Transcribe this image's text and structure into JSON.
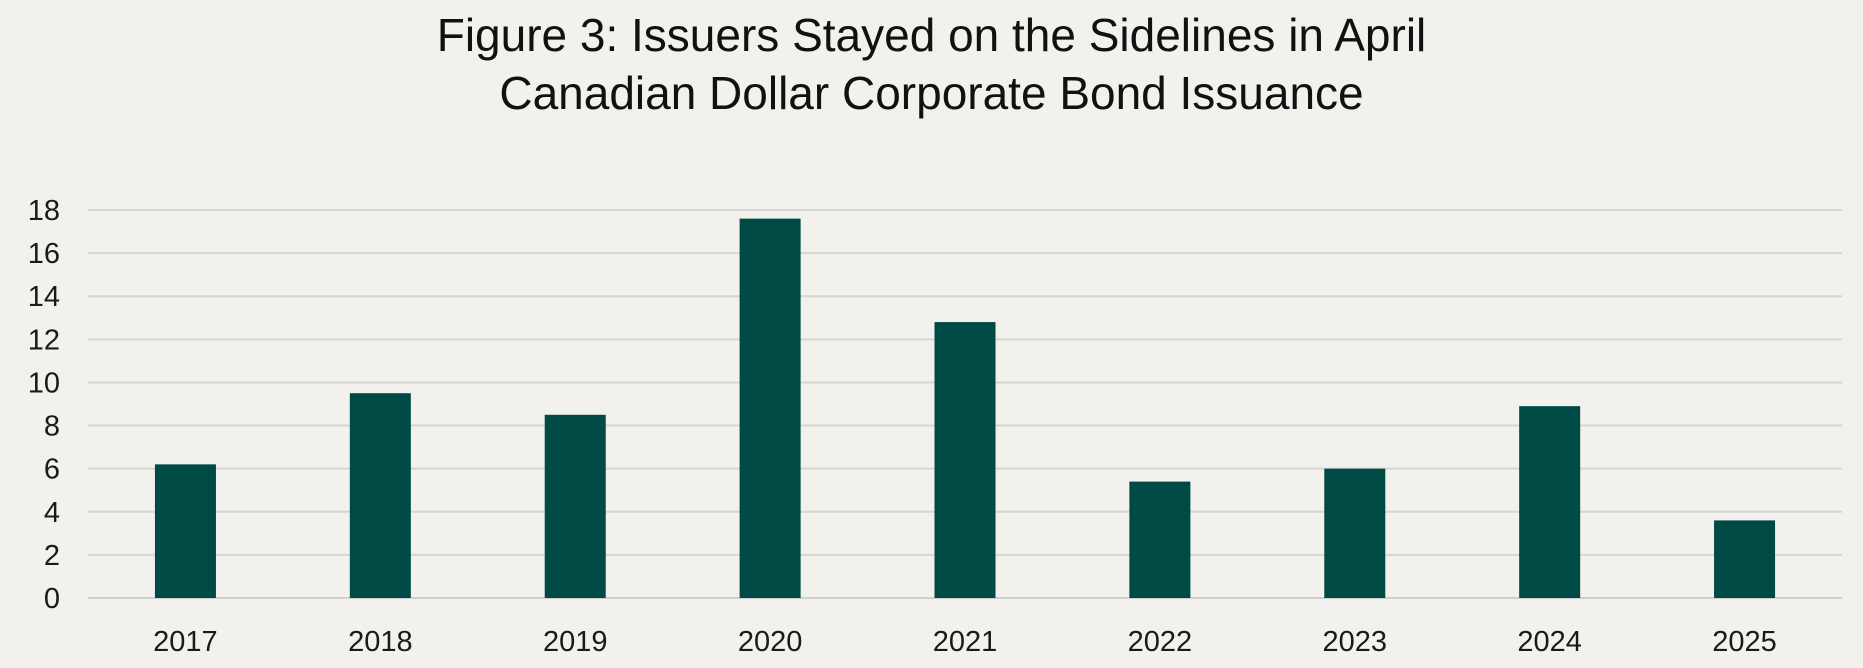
{
  "chart_data": {
    "type": "bar",
    "title": "Figure 3: Issuers Stayed on the Sidelines in April",
    "subtitle": "Canadian Dollar Corporate Bond Issuance",
    "xlabel": "",
    "ylabel": "",
    "categories": [
      "2017",
      "2018",
      "2019",
      "2020",
      "2021",
      "2022",
      "2023",
      "2024",
      "2025"
    ],
    "values": [
      6.2,
      9.5,
      8.5,
      17.6,
      12.8,
      5.4,
      6.0,
      8.9,
      3.6
    ],
    "ylim": [
      0,
      18
    ],
    "yticks": [
      "0",
      "2",
      "4",
      "6",
      "8",
      "10",
      "12",
      "14",
      "16",
      "18"
    ],
    "grid": true,
    "legend": "none",
    "bar_color": "#004a45"
  }
}
